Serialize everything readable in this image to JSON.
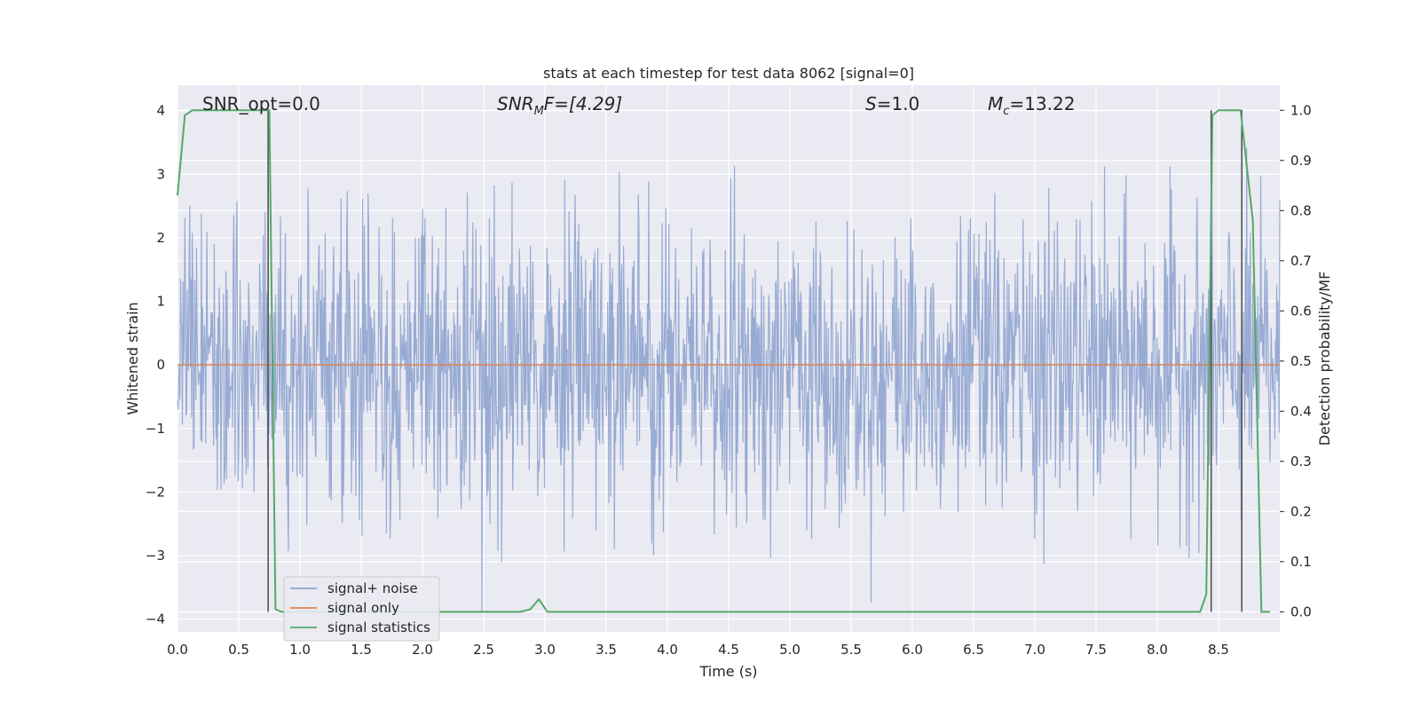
{
  "chart_data": {
    "type": "line",
    "title": "stats at each timestep for test data 8062 [signal=0]",
    "xlabel": "Time (s)",
    "ylabel": "Whitened strain",
    "y2label": "Detection probability/MF",
    "xlim": [
      0.0,
      9.0
    ],
    "ylim": [
      -4.2,
      4.4
    ],
    "y2lim": [
      -0.04,
      1.05
    ],
    "x_ticks": [
      "0.0",
      "0.5",
      "1.0",
      "1.5",
      "2.0",
      "2.5",
      "3.0",
      "3.5",
      "4.0",
      "4.5",
      "5.0",
      "5.5",
      "6.0",
      "6.5",
      "7.0",
      "7.5",
      "8.0",
      "8.5"
    ],
    "y_ticks": [
      "4",
      "3",
      "2",
      "1",
      "0",
      "−1",
      "−2",
      "−3",
      "−4"
    ],
    "y2_ticks": [
      "1.0",
      "0.9",
      "0.8",
      "0.7",
      "0.6",
      "0.5",
      "0.4",
      "0.3",
      "0.2",
      "0.1",
      "0.0"
    ],
    "grid": true,
    "legend_position": "lower-left",
    "annotations": {
      "snr_opt": "SNR_opt=0.0",
      "snr_mf_base": "SNR",
      "snr_mf_sub": "M",
      "snr_mf_tail": "F=[4.29]",
      "s_base": "S",
      "s_tail": "=1.0",
      "mc_base": "M",
      "mc_sub": "c",
      "mc_tail": "=13.22"
    },
    "series": [
      {
        "name": "signal+ noise",
        "color": "#8fa4cf",
        "noise_std": 1.0,
        "x_range": [
          0.0,
          9.0
        ]
      },
      {
        "name": "signal only",
        "color": "#dd8452",
        "x": [
          0.0,
          9.0
        ],
        "y": [
          0.0,
          0.0
        ]
      },
      {
        "name": "signal statistics",
        "color": "#55a868",
        "axis": "right",
        "x": [
          0.0,
          0.06,
          0.12,
          0.18,
          0.7,
          0.75,
          0.8,
          0.85,
          2.8,
          2.88,
          2.95,
          3.02,
          5.3,
          5.45,
          8.35,
          8.4,
          8.45,
          8.5,
          8.55,
          8.6,
          8.68,
          8.78,
          8.85,
          8.92
        ],
        "y": [
          0.83,
          0.99,
          1.0,
          1.0,
          1.0,
          1.0,
          0.005,
          0.0,
          0.0,
          0.005,
          0.025,
          0.0,
          0.0,
          0.0,
          0.0,
          0.035,
          0.99,
          1.0,
          1.0,
          1.0,
          1.0,
          0.78,
          0.0,
          0.0
        ]
      }
    ],
    "vertical_lines_x": [
      0.74,
      8.44,
      8.69
    ],
    "vertical_lines_y2_range": [
      0.0,
      1.0
    ]
  }
}
